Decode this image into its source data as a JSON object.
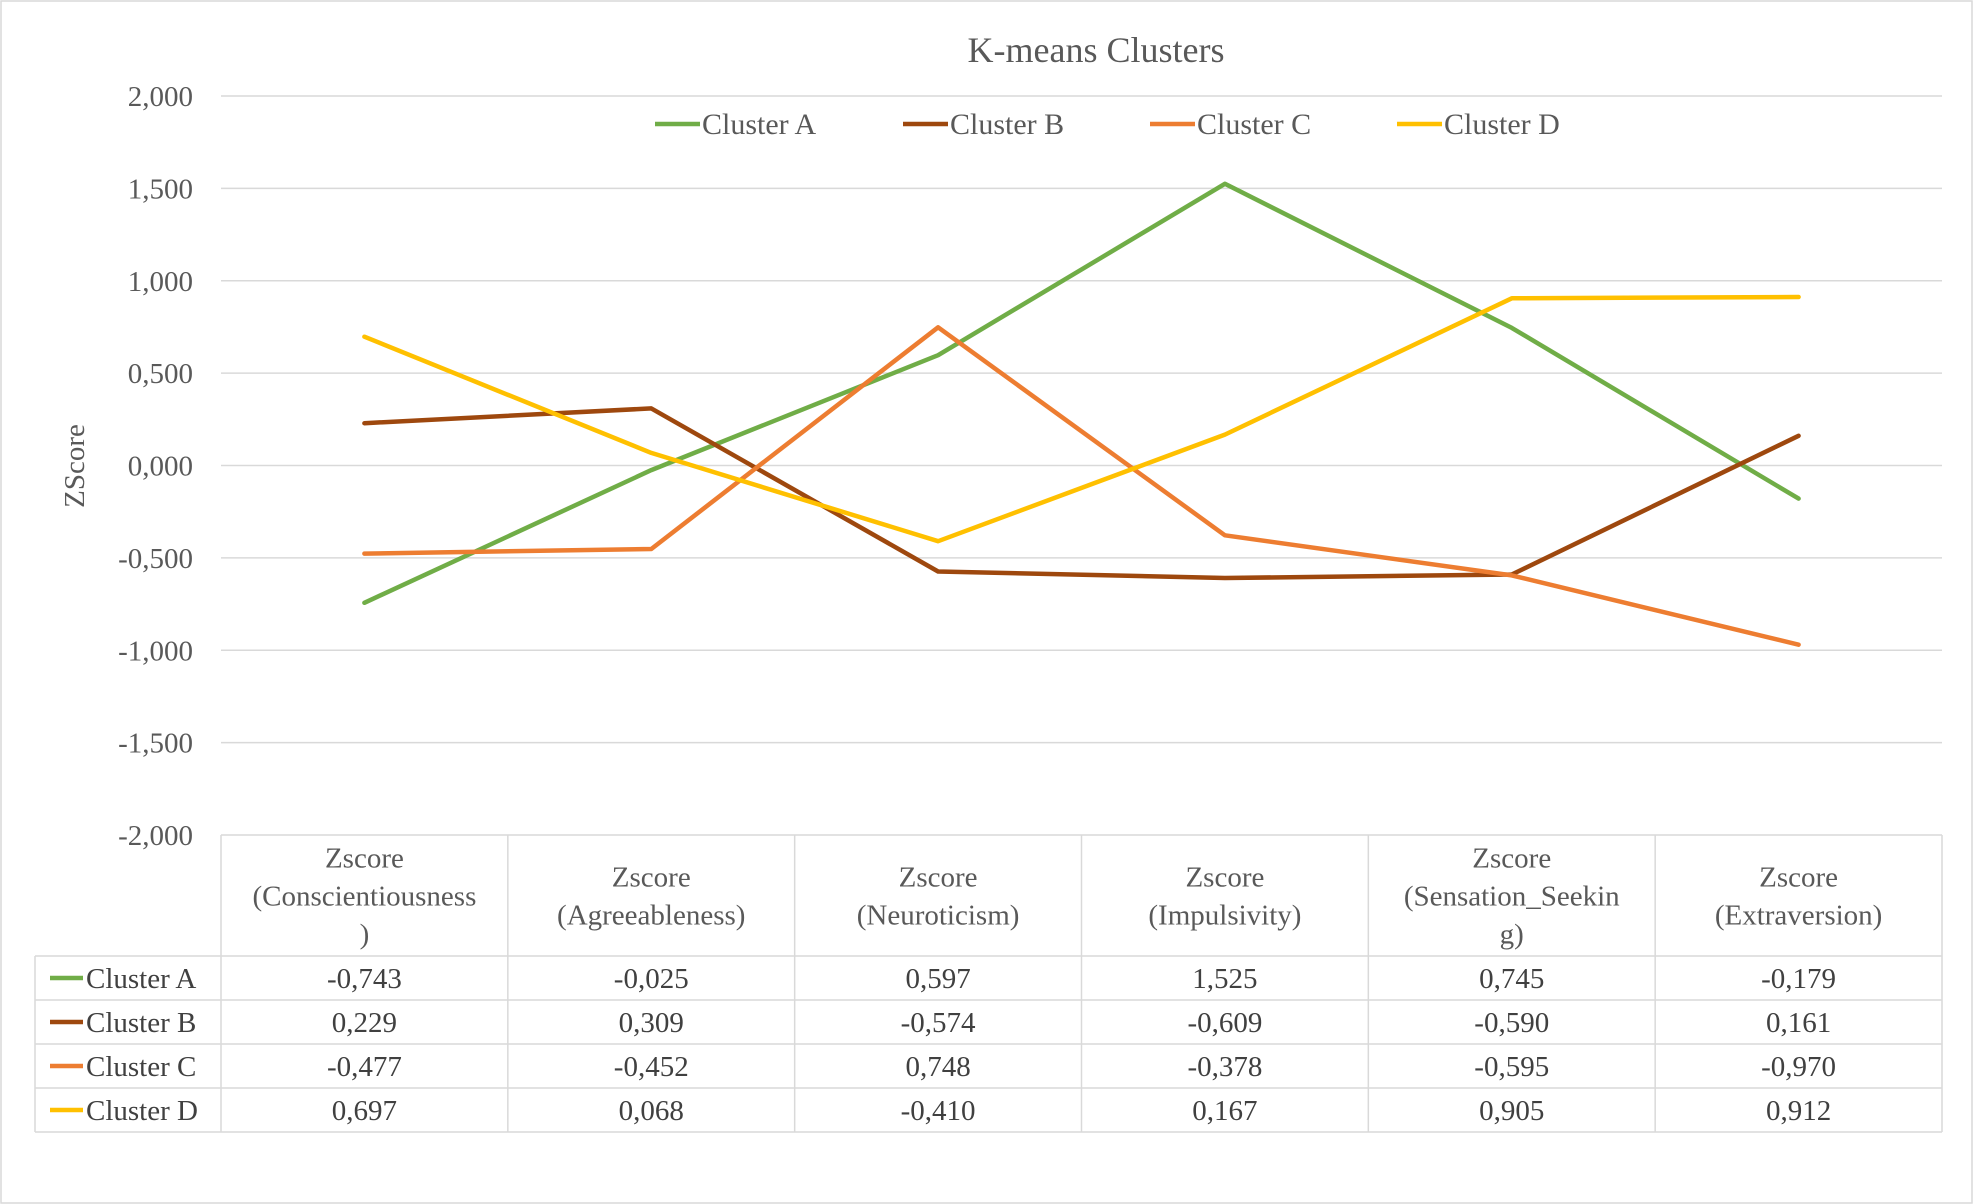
{
  "chart_data": {
    "type": "line",
    "title": "K-means Clusters",
    "ylabel": "ZScore",
    "xlabel": "",
    "ylim": [
      -2,
      2
    ],
    "yticks": [
      2,
      1.5,
      1,
      0.5,
      0,
      -0.5,
      -1,
      -1.5,
      -2
    ],
    "ytick_labels": [
      "2,000",
      "1,500",
      "1,000",
      "0,500",
      "0,000",
      "-0,500",
      "-1,000",
      "-1,500",
      "-2,000"
    ],
    "grid": true,
    "legend_position": "top",
    "categories": [
      [
        "Zscore",
        "(Conscientiousness",
        ")"
      ],
      [
        "Zscore",
        "(Agreeableness)"
      ],
      [
        "Zscore",
        "(Neuroticism)"
      ],
      [
        "Zscore",
        "(Impulsivity)"
      ],
      [
        "Zscore",
        "(Sensation_Seekin",
        "g)"
      ],
      [
        "Zscore",
        "(Extraversion)"
      ]
    ],
    "series": [
      {
        "name": "Cluster A",
        "color": "#70ad47",
        "values": [
          -0.743,
          -0.025,
          0.597,
          1.525,
          0.745,
          -0.179
        ],
        "labels": [
          "-0,743",
          "-0,025",
          "0,597",
          "1,525",
          "0,745",
          "-0,179"
        ]
      },
      {
        "name": "Cluster B",
        "color": "#9e480e",
        "values": [
          0.229,
          0.309,
          -0.574,
          -0.609,
          -0.59,
          0.161
        ],
        "labels": [
          "0,229",
          "0,309",
          "-0,574",
          "-0,609",
          "-0,590",
          "0,161"
        ]
      },
      {
        "name": "Cluster C",
        "color": "#ed7d31",
        "values": [
          -0.477,
          -0.452,
          0.748,
          -0.378,
          -0.595,
          -0.97
        ],
        "labels": [
          "-0,477",
          "-0,452",
          "0,748",
          "-0,378",
          "-0,595",
          "-0,970"
        ]
      },
      {
        "name": "Cluster D",
        "color": "#ffc000",
        "values": [
          0.697,
          0.068,
          -0.41,
          0.167,
          0.905,
          0.912
        ],
        "labels": [
          "0,697",
          "0,068",
          "-0,410",
          "0,167",
          "0,905",
          "0,912"
        ]
      }
    ]
  }
}
